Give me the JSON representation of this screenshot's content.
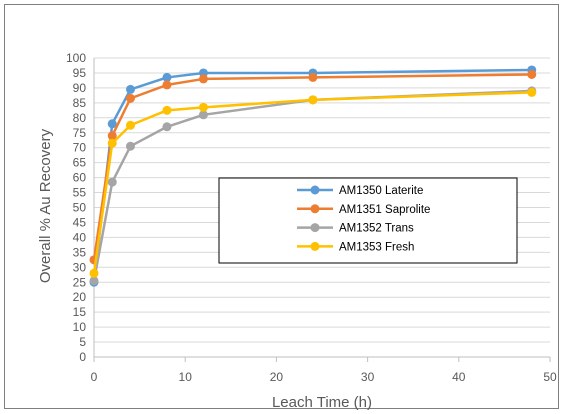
{
  "chart_data": {
    "type": "line",
    "xlabel": "Leach Time (h)",
    "ylabel": "Overall % Au Recovery",
    "xlim": [
      0,
      50
    ],
    "ylim": [
      0,
      100
    ],
    "x_ticks": [
      "0",
      "10",
      "20",
      "30",
      "40",
      "50"
    ],
    "y_ticks": [
      "0",
      "5",
      "10",
      "15",
      "20",
      "25",
      "30",
      "35",
      "40",
      "45",
      "50",
      "55",
      "60",
      "65",
      "70",
      "75",
      "80",
      "85",
      "90",
      "95",
      "100"
    ],
    "grid": true,
    "legend_position": "center-right",
    "series": [
      {
        "name": "AM1350 Laterite",
        "color": "#5b9bd5",
        "x": [
          0,
          2,
          4,
          8,
          12,
          24,
          48
        ],
        "y": [
          25,
          78,
          89.5,
          93.5,
          95,
          95,
          96
        ]
      },
      {
        "name": "AM1351 Saprolite",
        "color": "#ed7d31",
        "x": [
          0,
          2,
          4,
          8,
          12,
          24,
          48
        ],
        "y": [
          32.5,
          74,
          86.5,
          91,
          93,
          93.5,
          94.5
        ]
      },
      {
        "name": "AM1352 Trans",
        "color": "#a5a5a5",
        "x": [
          0,
          2,
          4,
          8,
          12,
          24,
          48
        ],
        "y": [
          25.5,
          58.5,
          70.5,
          77,
          81,
          86,
          89
        ]
      },
      {
        "name": "AM1353 Fresh",
        "color": "#ffc000",
        "x": [
          0,
          2,
          4,
          8,
          12,
          24,
          48
        ],
        "y": [
          28,
          71.5,
          77.5,
          82.5,
          83.5,
          86,
          88.5
        ]
      }
    ]
  }
}
